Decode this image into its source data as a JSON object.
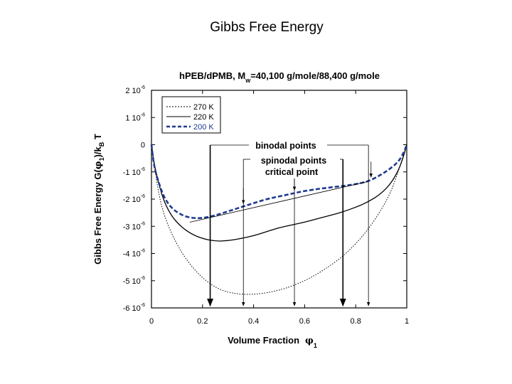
{
  "slide": {
    "title": "Gibbs Free Energy"
  },
  "chart_data": {
    "type": "line",
    "title": "h PEB/dPMB, M_w=40,100 g/mole/88,400 g/mole",
    "title_parts": {
      "prefix": "hPEB/dPMB, M",
      "sub": "w",
      "suffix": "=40,100 g/mole/88,400 g/mole"
    },
    "xlabel": "Volume Fraction φ1",
    "xlabel_parts": {
      "text": "Volume Fraction",
      "phi": "φ",
      "sub": "1"
    },
    "ylabel": "Gibbs Free Energy G(φ1)/kBT",
    "ylabel_parts": {
      "a": "Gibbs Free Energy G(",
      "phi": "φ",
      "sub1": "1",
      "b": ")/k",
      "subB": "B",
      "c": " T"
    },
    "xlim": [
      0,
      1
    ],
    "ylim": [
      -6e-06,
      2e-06
    ],
    "x_ticks": [
      {
        "value": 0,
        "label": "0"
      },
      {
        "value": 0.2,
        "label": "0.2"
      },
      {
        "value": 0.4,
        "label": "0.4"
      },
      {
        "value": 0.6,
        "label": "0.6"
      },
      {
        "value": 0.8,
        "label": "0.8"
      },
      {
        "value": 1,
        "label": "1"
      }
    ],
    "y_ticks": [
      {
        "value": 2e-06,
        "mant": "2",
        "base": " 10",
        "exp": "-6"
      },
      {
        "value": 1e-06,
        "mant": "1",
        "base": " 10",
        "exp": "-6"
      },
      {
        "value": 0,
        "mant": "0",
        "base": "",
        "exp": ""
      },
      {
        "value": -1e-06,
        "mant": "-1",
        "base": " 10",
        "exp": "-6"
      },
      {
        "value": -2e-06,
        "mant": "-2",
        "base": " 10",
        "exp": "-6"
      },
      {
        "value": -3e-06,
        "mant": "-3",
        "base": " 10",
        "exp": "-6"
      },
      {
        "value": -4e-06,
        "mant": "-4",
        "base": " 10",
        "exp": "-6"
      },
      {
        "value": -5e-06,
        "mant": "-5",
        "base": " 10",
        "exp": "-6"
      },
      {
        "value": -6e-06,
        "mant": "-6",
        "base": " 10",
        "exp": "-6"
      }
    ],
    "series": [
      {
        "name": "270 K",
        "style": "dotted",
        "color": "#000000",
        "x": [
          0,
          0.01,
          0.03,
          0.05,
          0.08,
          0.12,
          0.16,
          0.2,
          0.25,
          0.3,
          0.35,
          0.4,
          0.45,
          0.5,
          0.55,
          0.6,
          0.65,
          0.7,
          0.75,
          0.8,
          0.85,
          0.9,
          0.94,
          0.97,
          0.99,
          1
        ],
        "y": [
          0,
          -7e-07,
          -1.9e-06,
          -2.6e-06,
          -3.3e-06,
          -4e-06,
          -4.5e-06,
          -4.9e-06,
          -5.25e-06,
          -5.43e-06,
          -5.5e-06,
          -5.5e-06,
          -5.45e-06,
          -5.35e-06,
          -5.2e-06,
          -5e-06,
          -4.75e-06,
          -4.45e-06,
          -4.1e-06,
          -3.65e-06,
          -3.1e-06,
          -2.4e-06,
          -1.7e-06,
          -9e-07,
          -3e-07,
          0
        ]
      },
      {
        "name": "220 K",
        "style": "solid",
        "color": "#000000",
        "x": [
          0,
          0.01,
          0.03,
          0.05,
          0.08,
          0.12,
          0.16,
          0.2,
          0.25,
          0.3,
          0.35,
          0.4,
          0.45,
          0.5,
          0.55,
          0.6,
          0.65,
          0.7,
          0.75,
          0.8,
          0.85,
          0.9,
          0.94,
          0.97,
          0.99,
          1
        ],
        "y": [
          0,
          -7e-07,
          -1.5e-06,
          -2.1e-06,
          -2.65e-06,
          -3.05e-06,
          -3.3e-06,
          -3.45e-06,
          -3.55e-06,
          -3.53e-06,
          -3.45e-06,
          -3.35e-06,
          -3.2e-06,
          -3.05e-06,
          -2.95e-06,
          -2.85e-06,
          -2.72e-06,
          -2.6e-06,
          -2.47e-06,
          -2.3e-06,
          -2.1e-06,
          -1.8e-06,
          -1.4e-06,
          -9e-07,
          -3.5e-07,
          0
        ]
      },
      {
        "name": "200 K",
        "style": "dashed",
        "color": "#1f3a8f",
        "x": [
          0,
          0.01,
          0.03,
          0.05,
          0.08,
          0.12,
          0.16,
          0.2,
          0.25,
          0.3,
          0.35,
          0.4,
          0.45,
          0.5,
          0.55,
          0.6,
          0.65,
          0.7,
          0.75,
          0.8,
          0.85,
          0.9,
          0.94,
          0.97,
          0.99,
          1
        ],
        "y": [
          0,
          -8e-07,
          -1.45e-06,
          -1.95e-06,
          -2.35e-06,
          -2.6e-06,
          -2.7e-06,
          -2.7e-06,
          -2.6e-06,
          -2.45e-06,
          -2.3e-06,
          -2.15e-06,
          -2e-06,
          -1.9e-06,
          -1.8e-06,
          -1.7e-06,
          -1.63e-06,
          -1.57e-06,
          -1.52e-06,
          -1.45e-06,
          -1.35e-06,
          -1.1e-06,
          -8.5e-07,
          -6e-07,
          -2.5e-07,
          0
        ]
      },
      {
        "name": "common tangent",
        "style": "thin",
        "color": "#000000",
        "x": [
          0.15,
          0.85
        ],
        "y": [
          -2.85e-06,
          -1.35e-06
        ]
      }
    ],
    "legend": {
      "position": "top-left",
      "entries": [
        "270 K",
        "220 K",
        "200 K"
      ]
    },
    "annotations": {
      "binodal_label": "binodal points",
      "spinodal_label": "spinodal points",
      "critical_label": "critical point",
      "binodal_x": [
        0.23,
        0.85
      ],
      "spinodal_x": [
        0.36,
        0.75
      ],
      "critical_x": 0.56,
      "critical_marker_x": [
        0.36,
        0.56,
        0.86
      ]
    }
  }
}
